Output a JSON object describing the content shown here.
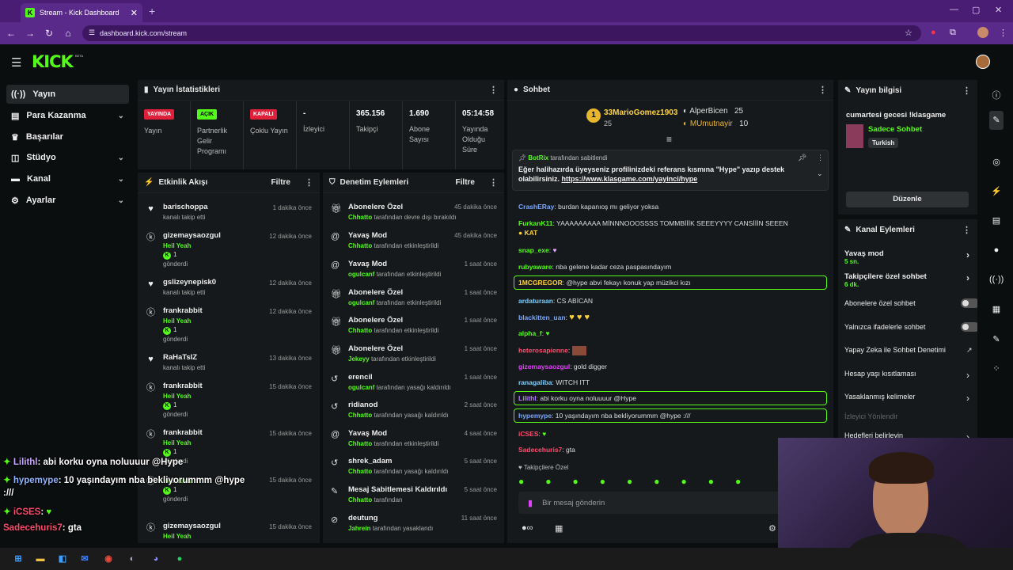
{
  "browser": {
    "tab_title": "Stream - Kick Dashboard",
    "url": "dashboard.kick.com/stream"
  },
  "kick": {
    "logo": "KICK",
    "beta": "BETA"
  },
  "sidebar": {
    "items": [
      {
        "label": "Yayın",
        "icon": "broadcast-icon"
      },
      {
        "label": "Para Kazanma",
        "icon": "money-icon"
      },
      {
        "label": "Başarılar",
        "icon": "trophy-icon"
      },
      {
        "label": "Stüdyo",
        "icon": "studio-icon"
      },
      {
        "label": "Kanal",
        "icon": "channel-icon"
      },
      {
        "label": "Ayarlar",
        "icon": "gear-icon"
      }
    ]
  },
  "stats": {
    "title": "Yayın İstatistikleri",
    "items": [
      {
        "badge": "YAYINDA",
        "label": "Yayın"
      },
      {
        "badge": "AÇIK",
        "label": "Partnerlik Gelir Programı"
      },
      {
        "badge": "KAPALI",
        "label": "Çoklu Yayın"
      },
      {
        "value": "-",
        "label": "İzleyici"
      },
      {
        "value": "365.156",
        "label": "Takipçi"
      },
      {
        "value": "1.690",
        "label": "Abone Sayısı"
      },
      {
        "value": "05:14:58",
        "label": "Yayında Olduğu Süre"
      }
    ]
  },
  "activity": {
    "title": "Etkinlik Akışı",
    "filter": "Filtre",
    "rows": [
      {
        "name": "barischoppa",
        "sub": "kanalı takip etti",
        "time": "1 dakika önce",
        "type": "follow"
      },
      {
        "name": "gizemaysaozgul",
        "hy": "Heil Yeah",
        "count": "1",
        "sub": "gönderdi",
        "time": "12 dakika önce",
        "type": "kick"
      },
      {
        "name": "gslizeynepisk0",
        "sub": "kanalı takip etti",
        "time": "12 dakika önce",
        "type": "follow"
      },
      {
        "name": "frankrabbit",
        "hy": "Heil Yeah",
        "count": "1",
        "sub": "gönderdi",
        "time": "12 dakika önce",
        "type": "kick"
      },
      {
        "name": "RaHaTsIZ",
        "sub": "kanalı takip etti",
        "time": "13 dakika önce",
        "type": "follow"
      },
      {
        "name": "frankrabbit",
        "hy": "Heil Yeah",
        "count": "1",
        "sub": "gönderdi",
        "time": "15 dakika önce",
        "type": "kick"
      },
      {
        "name": "frankrabbit",
        "hy": "Heil Yeah",
        "count": "1",
        "sub": "gönderdi",
        "time": "15 dakika önce",
        "type": "kick"
      },
      {
        "name": "",
        "hy": "Heil Yeah",
        "count": "1",
        "sub": "gönderdi",
        "time": "15 dakika önce",
        "type": "kick"
      },
      {
        "name": "gizemaysaozgul",
        "hy": "Heil Yeah",
        "count": "",
        "sub": "",
        "time": "15 dakika önce",
        "type": "kick"
      }
    ]
  },
  "moderation": {
    "title": "Denetim Eylemleri",
    "filter": "Filtre",
    "rows": [
      {
        "title": "Abonelere Özel",
        "who": "Chhatto",
        "sub": "tarafından devre dışı bırakıldı",
        "time": "45 dakika önce",
        "icon": "gift-icon"
      },
      {
        "title": "Yavaş Mod",
        "who": "Chhatto",
        "sub": "tarafından etkinleştirildi",
        "time": "45 dakika önce",
        "icon": "snail-icon"
      },
      {
        "title": "Yavaş Mod",
        "who": "ogulcanf",
        "sub": "tarafından etkinleştirildi",
        "time": "1 saat önce",
        "icon": "snail-icon"
      },
      {
        "title": "Abonelere Özel",
        "who": "ogulcanf",
        "sub": "tarafından etkinleştirildi",
        "time": "1 saat önce",
        "icon": "gift-icon"
      },
      {
        "title": "Abonelere Özel",
        "who": "Chhatto",
        "sub": "tarafından etkinleştirildi",
        "time": "1 saat önce",
        "icon": "gift-icon"
      },
      {
        "title": "Abonelere Özel",
        "who": "Jekeyy",
        "sub": "tarafından etkinleştirildi",
        "time": "1 saat önce",
        "icon": "gift-icon"
      },
      {
        "title": "erencil",
        "who": "ogulcanf",
        "sub": "tarafından yasağı kaldırıldı",
        "time": "1 saat önce",
        "icon": "undo-icon"
      },
      {
        "title": "ridianod",
        "who": "Chhatto",
        "sub": "tarafından yasağı kaldırıldı",
        "time": "2 saat önce",
        "icon": "undo-icon"
      },
      {
        "title": "Yavaş Mod",
        "who": "Chhatto",
        "sub": "tarafından etkinleştirildi",
        "time": "4 saat önce",
        "icon": "snail-icon"
      },
      {
        "title": "shrek_adam",
        "who": "Chhatto",
        "sub": "tarafından yasağı kaldırıldı",
        "time": "5 saat önce",
        "icon": "undo-icon"
      },
      {
        "title": "Mesaj Sabitlemesi Kaldırıldı",
        "who": "Chhatto",
        "sub": "tarafından",
        "time": "5 saat önce",
        "icon": "pin-icon"
      },
      {
        "title": "deutung",
        "who": "Jahrein",
        "sub": "tarafından yasaklandı",
        "time": "11 saat önce",
        "icon": "ban-icon"
      }
    ]
  },
  "chat": {
    "title": "Sohbet",
    "top": {
      "name1": "33MarioGomez1903",
      "n1": "25",
      "name2": "AlperBicen",
      "n2": "25",
      "name3": "MUmutnayir",
      "n3": "10",
      "rank": "1"
    },
    "pinned": {
      "by": "BotRix",
      "by_suffix": "tarafından sabitlendi",
      "text": "Eğer halihazırda üyeyseniz profilinizdeki referans kısmına \"Hype\" yazıp destek olabilirsiniz.",
      "link": "https://www.klasgame.com/yayinci/hype"
    },
    "messages": [
      {
        "user": "CrashERay",
        "color": "#7aa7ff",
        "text": "burdan kapanıoş mı geliyor yoksa"
      },
      {
        "user": "FurkanK11",
        "color": "#53fc18",
        "text": "YAAAAAAAAA MİNNNOOOSSSS TOMMBİİİK SEEEYYYY CANSİİİN SEEEN"
      },
      {
        "user": "snap_exe",
        "color": "#53fc18",
        "text": ""
      },
      {
        "user": "rubyaware",
        "color": "#53fc18",
        "text": "nba gelene kadar ceza paspasındayım"
      },
      {
        "user": "1MCGREGOR",
        "color": "#ffd23a",
        "text": "@hype abvi fekayı konuk yap müzikci kızı",
        "hl": true
      },
      {
        "user": "ardaturaan",
        "color": "#7ad0ff",
        "text": "CS ABİCAN"
      },
      {
        "user": "blackitten_uan",
        "color": "#7aa7ff",
        "text": ""
      },
      {
        "user": "alpha_f",
        "color": "#53fc18",
        "text": ""
      },
      {
        "user": "heterosapienne",
        "color": "#ff4b6e",
        "text": ""
      },
      {
        "user": "gizemaysaozgul",
        "color": "#e040fb",
        "text": "gold digger"
      },
      {
        "user": "ranagaliba",
        "color": "#7ad0ff",
        "text": "WITCH ITT"
      },
      {
        "user": "Lilithl",
        "color": "#b57cff",
        "text": "abi korku oyna noluuuur @Hype",
        "hl": true
      },
      {
        "user": "hypemype",
        "color": "#7aa7ff",
        "text": "10 yaşındayım nba bekliyorummm @hype :///",
        "hl": true
      },
      {
        "user": "iCSES",
        "color": "#ff4b6e",
        "text": ""
      },
      {
        "user": "Sadecehuris7",
        "color": "#ff4b6e",
        "text": "gta"
      }
    ],
    "followers_only": "Takipçilere Özel",
    "input_placeholder": "Bir mesaj gönderin"
  },
  "stream_info": {
    "title": "Yayın bilgisi",
    "stream_title": "cumartesi gecesi !klasgame",
    "category": "Sadece Sohbet",
    "tag": "Turkish",
    "edit": "Düzenle"
  },
  "channel_actions": {
    "title": "Kanal Eylemleri",
    "items": [
      {
        "label": "Yavaş mod",
        "sub": "5 sn.",
        "ctrl": "arrow"
      },
      {
        "label": "Takipçilere özel sohbet",
        "sub": "6 dk.",
        "ctrl": "arrow"
      },
      {
        "label": "Abonelere özel sohbet",
        "ctrl": "toggle"
      },
      {
        "label": "Yalnızca ifadelerle sohbet",
        "ctrl": "toggle"
      },
      {
        "label": "Yapay Zeka ile Sohbet Denetimi",
        "ctrl": "ext"
      },
      {
        "label": "Hesap yaşı kısıtlaması",
        "ctrl": "arrow"
      },
      {
        "label": "Yasaklanmış kelimeler",
        "ctrl": "arrow"
      },
      {
        "label": "İzleyici Yönlendir",
        "ctrl": "none"
      },
      {
        "label": "Hedefleri belirleyin",
        "ctrl": "arrow"
      }
    ]
  },
  "overlay": [
    {
      "user": "Lilithl",
      "text": ": abi korku oyna noluuuur @Hype",
      "color": "#c9a6ff"
    },
    {
      "user": "hypemype",
      "text": ": 10 yaşındayım nba bekliyorummm @hype",
      "color": "#8fb4ff"
    },
    {
      "user": "",
      "text": ":///",
      "color": "#fff"
    },
    {
      "user": "iCSES",
      "text": ":",
      "color": "#ff4b6e"
    },
    {
      "user": "Sadecehuris7",
      "text": ": gta",
      "color": "#ff4b6e"
    }
  ]
}
